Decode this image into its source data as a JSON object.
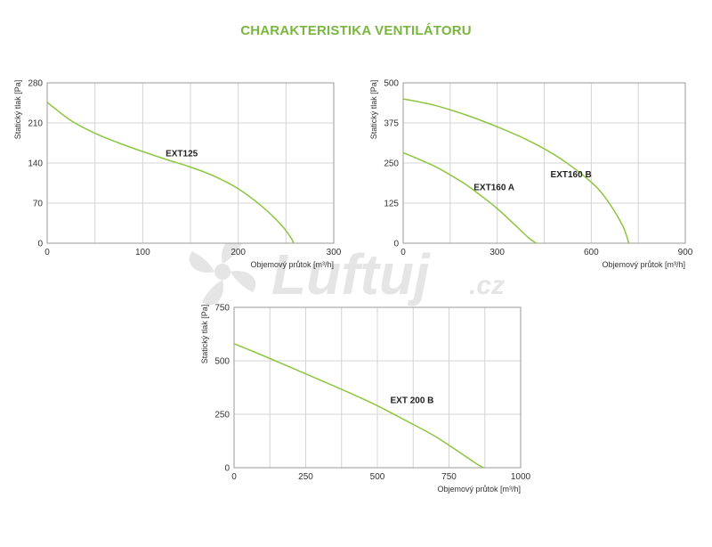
{
  "page": {
    "title": "CHARAKTERISTIKA VENTILÁTORU",
    "watermark": {
      "text": "Luftuj",
      "suffix": ".cz"
    }
  },
  "colors": {
    "curve": "#8cc63f",
    "title": "#7ab541",
    "grid": "#d4d4d4",
    "frame": "#9a9a9a",
    "watermark": "#d0d0d0"
  },
  "chart_data": [
    {
      "type": "line",
      "xlabel": "Objemový průtok [m³/h]",
      "ylabel": "Statický tlak [Pa]",
      "xlim": [
        0,
        300
      ],
      "ylim": [
        0,
        280
      ],
      "xticks": [
        0,
        100,
        200,
        300
      ],
      "yticks": [
        0,
        70,
        140,
        210,
        280
      ],
      "xgrid": [
        50,
        100,
        150,
        200,
        250
      ],
      "grid": true,
      "series": [
        {
          "name": "EXT125",
          "x": [
            0,
            25,
            50,
            75,
            100,
            125,
            150,
            175,
            200,
            225,
            245,
            255,
            258
          ],
          "y": [
            246,
            214,
            192,
            175,
            160,
            146,
            133,
            117,
            95,
            64,
            32,
            10,
            0
          ],
          "label_at": [
            124,
            152
          ]
        }
      ]
    },
    {
      "type": "line",
      "xlabel": "Objemový průtok [m³/h]",
      "ylabel": "Statický tlak [Pa]",
      "xlim": [
        0,
        900
      ],
      "ylim": [
        0,
        500
      ],
      "xticks": [
        0,
        300,
        600,
        900
      ],
      "yticks": [
        0,
        125,
        250,
        375,
        500
      ],
      "xgrid": [
        150,
        300,
        450,
        600,
        750
      ],
      "grid": true,
      "series": [
        {
          "name": "EXT160 A",
          "x": [
            0,
            50,
            100,
            150,
            200,
            250,
            300,
            350,
            400,
            425
          ],
          "y": [
            282,
            262,
            240,
            213,
            183,
            147,
            108,
            63,
            17,
            0
          ],
          "label_at": [
            225,
            165
          ]
        },
        {
          "name": "EXT160 B",
          "x": [
            0,
            100,
            200,
            300,
            400,
            500,
            600,
            650,
            700,
            720
          ],
          "y": [
            450,
            430,
            400,
            363,
            320,
            265,
            190,
            135,
            55,
            0
          ],
          "label_at": [
            470,
            205
          ]
        }
      ]
    },
    {
      "type": "line",
      "xlabel": "Objemový průtok [m³/h]",
      "ylabel": "Statický tlak [Pa]",
      "xlim": [
        0,
        1000
      ],
      "ylim": [
        0,
        750
      ],
      "xticks": [
        0,
        250,
        500,
        750,
        1000
      ],
      "yticks": [
        0,
        250,
        500,
        750
      ],
      "xgrid": [
        125,
        250,
        375,
        500,
        625,
        750,
        875
      ],
      "grid": true,
      "series": [
        {
          "name": "EXT 200 B",
          "x": [
            0,
            100,
            200,
            300,
            400,
            500,
            600,
            700,
            800,
            850,
            870
          ],
          "y": [
            580,
            525,
            468,
            410,
            352,
            290,
            220,
            148,
            60,
            15,
            0
          ],
          "label_at": [
            545,
            302
          ]
        }
      ]
    }
  ]
}
